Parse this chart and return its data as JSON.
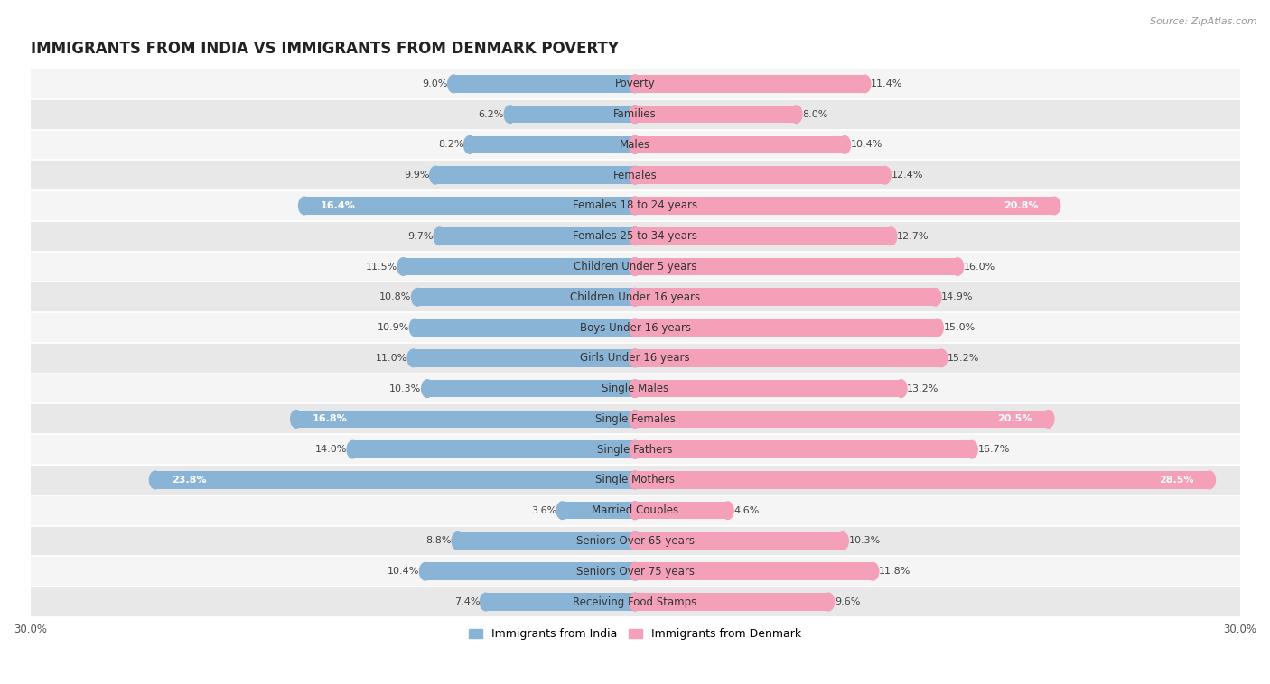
{
  "title": "IMMIGRANTS FROM INDIA VS IMMIGRANTS FROM DENMARK POVERTY",
  "source": "Source: ZipAtlas.com",
  "categories": [
    "Poverty",
    "Families",
    "Males",
    "Females",
    "Females 18 to 24 years",
    "Females 25 to 34 years",
    "Children Under 5 years",
    "Children Under 16 years",
    "Boys Under 16 years",
    "Girls Under 16 years",
    "Single Males",
    "Single Females",
    "Single Fathers",
    "Single Mothers",
    "Married Couples",
    "Seniors Over 65 years",
    "Seniors Over 75 years",
    "Receiving Food Stamps"
  ],
  "india_values": [
    9.0,
    6.2,
    8.2,
    9.9,
    16.4,
    9.7,
    11.5,
    10.8,
    10.9,
    11.0,
    10.3,
    16.8,
    14.0,
    23.8,
    3.6,
    8.8,
    10.4,
    7.4
  ],
  "denmark_values": [
    11.4,
    8.0,
    10.4,
    12.4,
    20.8,
    12.7,
    16.0,
    14.9,
    15.0,
    15.2,
    13.2,
    20.5,
    16.7,
    28.5,
    4.6,
    10.3,
    11.8,
    9.6
  ],
  "india_color": "#89b4d6",
  "denmark_color": "#f4a0b8",
  "india_color_dark": "#6090b8",
  "denmark_color_dark": "#e06080",
  "india_label": "Immigrants from India",
  "denmark_label": "Immigrants from Denmark",
  "white_label_threshold_india": 16.0,
  "white_label_threshold_denmark": 18.0,
  "xlim": 30.0,
  "bar_height": 0.58,
  "row_colors": [
    "#f5f5f5",
    "#e8e8e8"
  ],
  "title_fontsize": 12,
  "label_fontsize": 8.5,
  "value_fontsize": 8.0,
  "axis_label_fontsize": 8.5,
  "legend_fontsize": 9
}
